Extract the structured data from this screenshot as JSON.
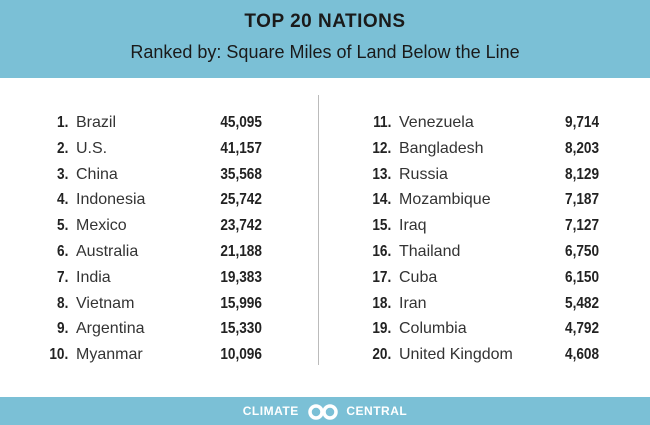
{
  "header": {
    "title": "TOP 20 NATIONS",
    "subtitle": "Ranked by: Square Miles of Land Below the Line"
  },
  "rankings": [
    {
      "rank": "1.",
      "name": "Brazil",
      "value": "45,095"
    },
    {
      "rank": "2.",
      "name": "U.S.",
      "value": "41,157"
    },
    {
      "rank": "3.",
      "name": "China",
      "value": "35,568"
    },
    {
      "rank": "4.",
      "name": "Indonesia",
      "value": "25,742"
    },
    {
      "rank": "5.",
      "name": "Mexico",
      "value": "23,742"
    },
    {
      "rank": "6.",
      "name": "Australia",
      "value": "21,188"
    },
    {
      "rank": "7.",
      "name": "India",
      "value": "19,383"
    },
    {
      "rank": "8.",
      "name": "Vietnam",
      "value": "15,996"
    },
    {
      "rank": "9.",
      "name": "Argentina",
      "value": "15,330"
    },
    {
      "rank": "10.",
      "name": "Myanmar",
      "value": "10,096"
    },
    {
      "rank": "11.",
      "name": "Venezuela",
      "value": "9,714"
    },
    {
      "rank": "12.",
      "name": "Bangladesh",
      "value": "8,203"
    },
    {
      "rank": "13.",
      "name": "Russia",
      "value": "8,129"
    },
    {
      "rank": "14.",
      "name": "Mozambique",
      "value": "7,187"
    },
    {
      "rank": "15.",
      "name": "Iraq",
      "value": "7,127"
    },
    {
      "rank": "16.",
      "name": "Thailand",
      "value": "6,750"
    },
    {
      "rank": "17.",
      "name": "Cuba",
      "value": "6,150"
    },
    {
      "rank": "18.",
      "name": "Iran",
      "value": "5,482"
    },
    {
      "rank": "19.",
      "name": "Columbia",
      "value": "4,792"
    },
    {
      "rank": "20.",
      "name": "United Kingdom",
      "value": "4,608"
    }
  ],
  "footer": {
    "logo_left": "CLIMATE",
    "logo_right": "CENTRAL"
  },
  "colors": {
    "accent": "#7bc0d6"
  }
}
